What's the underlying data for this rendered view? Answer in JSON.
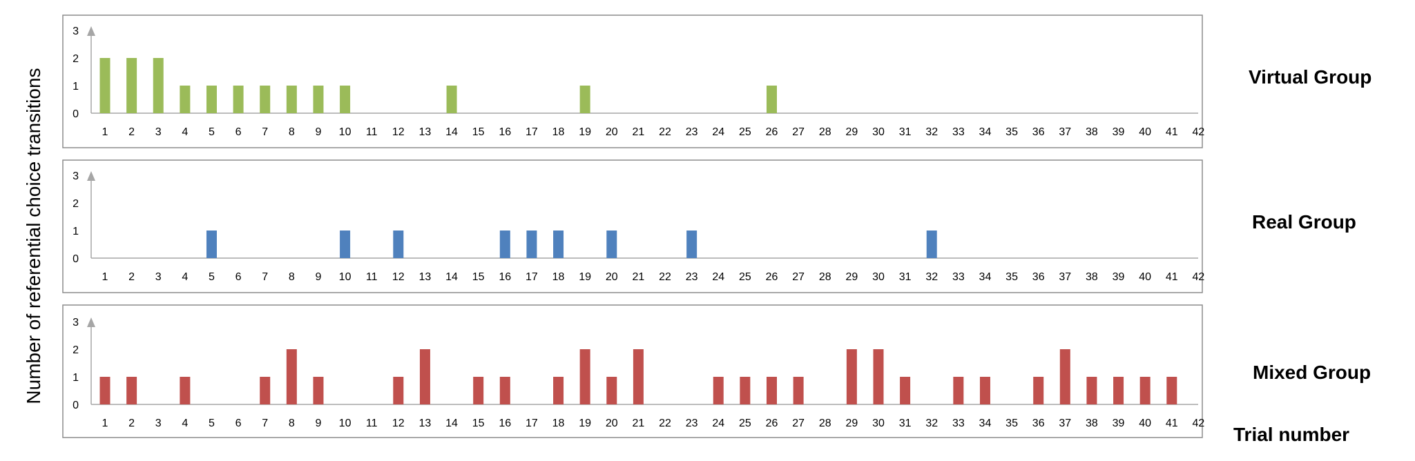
{
  "ylabel": "Number of referential choice transitions",
  "xlabel": "Trial number",
  "chart_data": [
    {
      "type": "bar",
      "name": "Virtual Group",
      "color": "#9BBB59",
      "categories": [
        "1",
        "2",
        "3",
        "4",
        "5",
        "6",
        "7",
        "8",
        "9",
        "10",
        "11",
        "12",
        "13",
        "14",
        "15",
        "16",
        "17",
        "18",
        "19",
        "20",
        "21",
        "22",
        "23",
        "24",
        "25",
        "26",
        "27",
        "28",
        "29",
        "30",
        "31",
        "32",
        "33",
        "34",
        "35",
        "36",
        "37",
        "38",
        "39",
        "40",
        "41",
        "42"
      ],
      "values": [
        2,
        2,
        2,
        1,
        1,
        1,
        1,
        1,
        1,
        1,
        0,
        0,
        0,
        1,
        0,
        0,
        0,
        0,
        1,
        0,
        0,
        0,
        0,
        0,
        0,
        1,
        0,
        0,
        0,
        0,
        0,
        0,
        0,
        0,
        0,
        0,
        0,
        0,
        0,
        0,
        0,
        0
      ],
      "ylim": [
        0,
        3
      ],
      "yticks": [
        "0",
        "1",
        "2",
        "3"
      ]
    },
    {
      "type": "bar",
      "name": "Real Group",
      "color": "#4F81BD",
      "categories": [
        "1",
        "2",
        "3",
        "4",
        "5",
        "6",
        "7",
        "8",
        "9",
        "10",
        "11",
        "12",
        "13",
        "14",
        "15",
        "16",
        "17",
        "18",
        "19",
        "20",
        "21",
        "22",
        "23",
        "24",
        "25",
        "26",
        "27",
        "28",
        "29",
        "30",
        "31",
        "32",
        "33",
        "34",
        "35",
        "36",
        "37",
        "38",
        "39",
        "40",
        "41",
        "42"
      ],
      "values": [
        0,
        0,
        0,
        0,
        1,
        0,
        0,
        0,
        0,
        1,
        0,
        1,
        0,
        0,
        0,
        1,
        1,
        1,
        0,
        1,
        0,
        0,
        1,
        0,
        0,
        0,
        0,
        0,
        0,
        0,
        0,
        1,
        0,
        0,
        0,
        0,
        0,
        0,
        0,
        0,
        0,
        0
      ],
      "ylim": [
        0,
        3
      ],
      "yticks": [
        "0",
        "1",
        "2",
        "3"
      ]
    },
    {
      "type": "bar",
      "name": "Mixed Group",
      "color": "#C0504D",
      "categories": [
        "1",
        "2",
        "3",
        "4",
        "5",
        "6",
        "7",
        "8",
        "9",
        "10",
        "11",
        "12",
        "13",
        "14",
        "15",
        "16",
        "17",
        "18",
        "19",
        "20",
        "21",
        "22",
        "23",
        "24",
        "25",
        "26",
        "27",
        "28",
        "29",
        "30",
        "31",
        "32",
        "33",
        "34",
        "35",
        "36",
        "37",
        "38",
        "39",
        "40",
        "41",
        "42"
      ],
      "values": [
        1,
        1,
        0,
        1,
        0,
        0,
        1,
        2,
        1,
        0,
        0,
        1,
        2,
        0,
        1,
        1,
        0,
        1,
        2,
        1,
        2,
        0,
        0,
        1,
        1,
        1,
        1,
        0,
        2,
        2,
        1,
        0,
        1,
        1,
        0,
        1,
        2,
        1,
        1,
        1,
        1,
        0
      ],
      "ylim": [
        0,
        3
      ],
      "yticks": [
        "0",
        "1",
        "2",
        "3"
      ]
    }
  ]
}
